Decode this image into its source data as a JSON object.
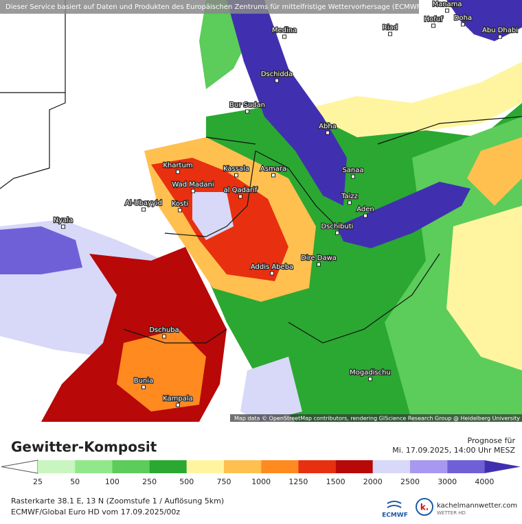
{
  "header": {
    "disclaimer": "Dieser Service basiert auf Daten und Produkten des Europäischen Zentrums für mittelfristige Wettervorhersage (ECMWF)"
  },
  "map": {
    "attribution": "Map data © OpenStreetMap contributors, rendering GIScience Research Group @ Heidelberg University",
    "cities": [
      "Manama",
      "Doha",
      "Hofuf",
      "Riad",
      "Medina",
      "Abu Dhabi",
      "Dschidda",
      "Bur Sudan",
      "Abha",
      "Khartum",
      "Kassala",
      "Asmara",
      "Sanaa",
      "Wad Madani",
      "al Qadarif",
      "Al-Ubayyid",
      "Kosti",
      "Taizz",
      "Aden",
      "Nyala",
      "Dschibuti",
      "Dire Dawa",
      "Addis Abeba",
      "Dschuba",
      "Mogadischu",
      "Bunia",
      "Kampala"
    ]
  },
  "panel": {
    "title": "Gewitter-Komposit",
    "forecast_label": "Prognose für",
    "forecast_time": "Mi. 17.09.2025, 14:00 Uhr MESZ",
    "legend": {
      "labels": [
        25,
        50,
        100,
        250,
        500,
        750,
        1000,
        1250,
        1500,
        2000,
        2500,
        3000,
        4000
      ],
      "colors": [
        "#ffffff",
        "#c8f5c0",
        "#90e88a",
        "#5ccc5a",
        "#2aa832",
        "#fff5a0",
        "#ffc050",
        "#ff8a20",
        "#e83010",
        "#b80808",
        "#d8d8f8",
        "#a898f0",
        "#7060d8",
        "#4030b0"
      ]
    },
    "footer": [
      "Rasterkarte 38.1 E, 13 N (Zoomstufe 1 / Auflösung 5km)",
      "ECMWF/Global Euro HD vom  17.09.2025/00z"
    ],
    "logo_ecmwf": "ECMWF",
    "logo_site": "kachelmannwetter.com",
    "logo_sub": "WETTER HD"
  }
}
